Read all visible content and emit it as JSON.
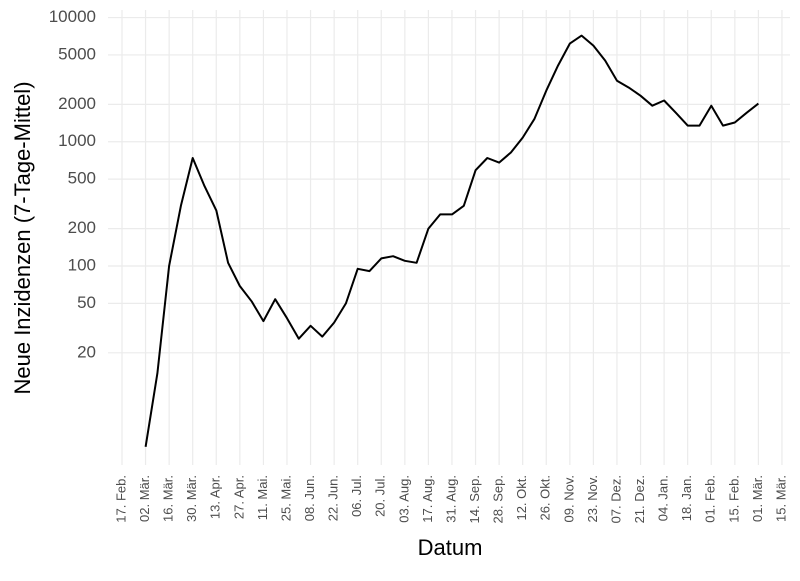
{
  "chart_data": {
    "type": "line",
    "log_y": true,
    "grid": true,
    "x_label": "Datum",
    "y_label": "Neue Inzidenzen (7-Tage-Mittel)",
    "xticks": [
      "17. Feb.",
      "02. Mär.",
      "16. Mär.",
      "30. Mär.",
      "13. Apr.",
      "27. Apr.",
      "11. Mai.",
      "25. Mai.",
      "08. Jun.",
      "22. Jun.",
      "06. Jul.",
      "20. Jul.",
      "03. Aug.",
      "17. Aug.",
      "31. Aug.",
      "14. Sep.",
      "28. Sep.",
      "12. Okt.",
      "26. Okt.",
      "09. Nov.",
      "23. Nov.",
      "07. Dez.",
      "21. Dez.",
      "04. Jan.",
      "18. Jan.",
      "01. Feb.",
      "15. Feb.",
      "01. Mär.",
      "15. Mär."
    ],
    "ylim": [
      2.5,
      11500
    ],
    "yticks": [
      20,
      50,
      100,
      200,
      500,
      1000,
      2000,
      5000,
      10000
    ],
    "x": [
      "02. Mär.",
      "09. Mär.",
      "16. Mär.",
      "23. Mär.",
      "30. Mär.",
      "06. Apr.",
      "13. Apr.",
      "20. Apr.",
      "27. Apr.",
      "04. Mai.",
      "11. Mai.",
      "18. Mai.",
      "25. Mai.",
      "01. Jun.",
      "08. Jun.",
      "15. Jun.",
      "22. Jun.",
      "29. Jun.",
      "06. Jul.",
      "13. Jul.",
      "20. Jul.",
      "27. Jul.",
      "03. Aug.",
      "10. Aug.",
      "17. Aug.",
      "24. Aug.",
      "31. Aug.",
      "07. Sep.",
      "14. Sep.",
      "21. Sep.",
      "28. Sep.",
      "05. Okt.",
      "12. Okt.",
      "19. Okt.",
      "26. Okt.",
      "02. Nov.",
      "09. Nov.",
      "16. Nov.",
      "23. Nov.",
      "30. Nov.",
      "07. Dez.",
      "14. Dez.",
      "21. Dez.",
      "28. Dez.",
      "04. Jan.",
      "11. Jan.",
      "18. Jan.",
      "25. Jan.",
      "01. Feb.",
      "08. Feb.",
      "15. Feb.",
      "22. Feb.",
      "01. Mär."
    ],
    "series": [
      {
        "color": "#000000",
        "values": [
          3.5,
          13.7,
          100,
          305,
          740,
          440,
          280,
          106,
          69,
          52,
          36,
          54,
          38,
          26,
          33,
          27,
          35,
          50,
          95,
          91,
          115,
          120,
          110,
          106,
          200,
          260,
          260,
          305,
          590,
          740,
          680,
          820,
          1080,
          1530,
          2580,
          4100,
          6170,
          7160,
          5950,
          4500,
          3100,
          2730,
          2350,
          1950,
          2150,
          1710,
          1350,
          1350,
          1950,
          1350,
          1430,
          1710,
          2030
        ]
      }
    ]
  }
}
